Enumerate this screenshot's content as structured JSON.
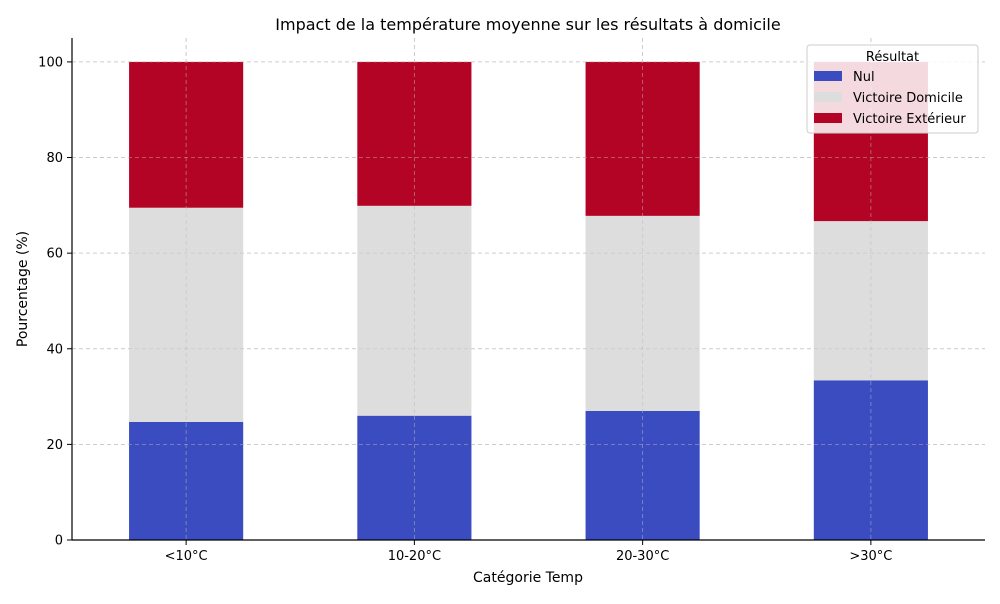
{
  "chart_data": {
    "type": "bar",
    "stacked": true,
    "title": "Impact de la température moyenne sur les résultats à domicile",
    "xlabel": "Catégorie Temp",
    "ylabel": "Pourcentage (%)",
    "ylim": [
      0,
      105
    ],
    "yticks": [
      0,
      20,
      40,
      60,
      80,
      100
    ],
    "grid": true,
    "categories": [
      "<10°C",
      "10-20°C",
      "20-30°C",
      ">30°C"
    ],
    "series": [
      {
        "name": "Nul",
        "color": "#3b4cc0",
        "values": [
          24.7,
          26.0,
          27.0,
          33.4
        ]
      },
      {
        "name": "Victoire Domicile",
        "color": "#dddddd",
        "values": [
          44.8,
          43.9,
          40.8,
          33.3
        ]
      },
      {
        "name": "Victoire Extérieur",
        "color": "#b40426",
        "values": [
          30.5,
          30.1,
          32.2,
          33.3
        ]
      }
    ],
    "legend": {
      "title": "Résultat",
      "position": "top-right"
    }
  }
}
